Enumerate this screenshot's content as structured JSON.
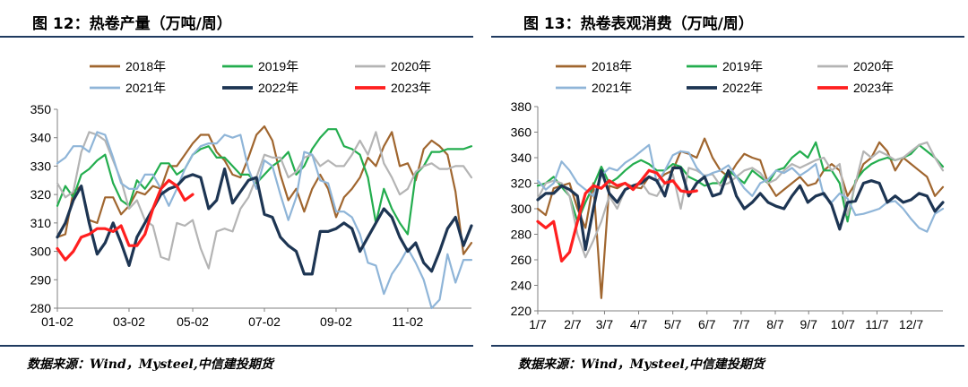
{
  "charts": [
    {
      "title": "图 12：热卷产量（万吨/周）",
      "source": "数据来源：Wind，Mysteel,中信建投期货"
    },
    {
      "title": "图 13：热卷表观消费（万吨/周）",
      "source": "数据来源：Wind，Mysteel,中信建投期货"
    }
  ],
  "chart_data": [
    {
      "type": "line",
      "title": "图 12：热卷产量（万吨/周）",
      "xlabel": "",
      "ylabel": "",
      "ylim": [
        280,
        350
      ],
      "yticks": [
        280,
        290,
        300,
        310,
        320,
        330,
        340,
        350
      ],
      "xlim": [
        1,
        53
      ],
      "x_tick_labels": [
        "01-02",
        "03-02",
        "05-02",
        "07-02",
        "09-02",
        "11-02"
      ],
      "x_tick_weeks": [
        1,
        10,
        18,
        27,
        36,
        45
      ],
      "grid": false,
      "legend_position": "top",
      "series": [
        {
          "name": "2018年",
          "color": "#a0662f",
          "width": 2.2,
          "values": [
            305,
            306,
            321,
            323,
            311,
            310,
            319,
            319,
            313,
            316,
            321,
            320,
            323,
            322,
            330,
            330,
            334,
            338,
            341,
            341,
            335,
            332,
            327,
            326,
            333,
            341,
            344,
            339,
            327,
            318,
            322,
            314,
            322,
            327,
            322,
            312,
            319,
            322,
            326,
            333,
            330,
            337,
            342,
            330,
            331,
            325,
            336,
            339,
            337,
            334,
            321,
            299,
            303
          ]
        },
        {
          "name": "2019年",
          "color": "#23ad4e",
          "width": 2.2,
          "values": [
            316,
            323,
            319,
            327,
            329,
            332,
            334,
            324,
            318,
            316,
            325,
            322,
            326,
            331,
            331,
            327,
            329,
            334,
            336,
            337,
            333,
            333,
            330,
            327,
            327,
            324,
            327,
            330,
            332,
            335,
            327,
            330,
            336,
            340,
            343,
            343,
            337,
            336,
            334,
            326,
            310,
            322,
            315,
            310,
            306,
            327,
            330,
            335,
            335,
            336,
            336,
            336,
            337
          ]
        },
        {
          "name": "2020年",
          "color": "#b4b4b4",
          "width": 2.2,
          "values": [
            324,
            319,
            321,
            335,
            342,
            341,
            339,
            332,
            325,
            315,
            318,
            311,
            309,
            298,
            297,
            310,
            309,
            311,
            301,
            294,
            307,
            308,
            307,
            315,
            319,
            326,
            334,
            333,
            333,
            326,
            328,
            333,
            334,
            330,
            332,
            330,
            330,
            334,
            339,
            334,
            342,
            331,
            326,
            320,
            322,
            328,
            330,
            331,
            329,
            329,
            330,
            330,
            326
          ]
        },
        {
          "name": "2021年",
          "color": "#8fb5d8",
          "width": 2.2,
          "values": [
            331,
            333,
            337,
            337,
            335,
            342,
            341,
            333,
            324,
            322,
            322,
            327,
            327,
            322,
            316,
            322,
            329,
            334,
            337,
            338,
            338,
            341,
            340,
            341,
            329,
            322,
            332,
            330,
            320,
            311,
            319,
            335,
            334,
            325,
            324,
            314,
            314,
            312,
            306,
            296,
            295,
            285,
            292,
            296,
            301,
            296,
            290,
            280,
            283,
            299,
            289,
            297,
            297
          ]
        },
        {
          "name": "2022年",
          "color": "#1d3553",
          "width": 3.2,
          "values": [
            305,
            310,
            318,
            323,
            310,
            299,
            303,
            310,
            303,
            295,
            305,
            310,
            315,
            320,
            322,
            323,
            326,
            327,
            326,
            315,
            318,
            329,
            317,
            321,
            325,
            326,
            313,
            312,
            305,
            302,
            300,
            292,
            292,
            307,
            307,
            308,
            310,
            308,
            300,
            305,
            310,
            315,
            312,
            305,
            300,
            303,
            296,
            293,
            300,
            308,
            312,
            302,
            309
          ]
        },
        {
          "name": "2023年",
          "color": "#ff1f1f",
          "width": 3.2,
          "values": [
            301,
            297,
            300,
            305,
            306,
            308,
            308,
            307,
            309,
            302,
            302,
            306,
            315,
            322,
            325,
            323,
            318,
            320
          ]
        }
      ]
    },
    {
      "type": "line",
      "title": "图 13：热卷表观消费（万吨/周）",
      "xlabel": "",
      "ylabel": "",
      "ylim": [
        220,
        380
      ],
      "yticks": [
        220,
        240,
        260,
        280,
        300,
        320,
        340,
        360,
        380
      ],
      "xlim": [
        1,
        52
      ],
      "x_tick_labels": [
        "1/7",
        "2/7",
        "3/7",
        "4/7",
        "5/7",
        "6/7",
        "7/7",
        "8/7",
        "9/7",
        "10/7",
        "11/7",
        "12/7"
      ],
      "x_tick_weeks": [
        1,
        5.4,
        9.4,
        13.7,
        18,
        22.3,
        26.6,
        30.9,
        35.1,
        39.4,
        43.7,
        48
      ],
      "grid": false,
      "legend_position": "top",
      "series": [
        {
          "name": "2018年",
          "color": "#a0662f",
          "width": 2.2,
          "values": [
            300,
            295,
            316,
            318,
            320,
            300,
            285,
            320,
            230,
            318,
            316,
            320,
            317,
            316,
            325,
            322,
            327,
            330,
            345,
            343,
            340,
            355,
            340,
            330,
            325,
            335,
            343,
            340,
            338,
            320,
            310,
            315,
            320,
            325,
            318,
            320,
            330,
            335,
            330,
            310,
            320,
            335,
            340,
            352,
            345,
            330,
            340,
            335,
            330,
            325,
            310,
            317
          ]
        },
        {
          "name": "2019年",
          "color": "#23ad4e",
          "width": 2.2,
          "values": [
            318,
            320,
            325,
            317,
            310,
            290,
            305,
            318,
            333,
            320,
            324,
            330,
            335,
            338,
            335,
            330,
            330,
            335,
            333,
            325,
            322,
            318,
            320,
            320,
            330,
            325,
            320,
            330,
            325,
            320,
            330,
            332,
            340,
            345,
            340,
            352,
            330,
            330,
            320,
            290,
            322,
            330,
            335,
            338,
            340,
            338,
            340,
            343,
            350,
            345,
            340,
            333
          ]
        },
        {
          "name": "2020年",
          "color": "#b4b4b4",
          "width": 2.2,
          "values": [
            308,
            320,
            322,
            320,
            310,
            280,
            262,
            275,
            290,
            310,
            300,
            315,
            318,
            321,
            312,
            310,
            320,
            327,
            300,
            332,
            330,
            326,
            327,
            318,
            320,
            325,
            330,
            332,
            328,
            320,
            323,
            330,
            335,
            332,
            335,
            338,
            340,
            330,
            335,
            295,
            320,
            345,
            340,
            345,
            342,
            338,
            340,
            345,
            350,
            352,
            340,
            330
          ]
        },
        {
          "name": "2021年",
          "color": "#8fb5d8",
          "width": 2.2,
          "values": [
            322,
            315,
            320,
            337,
            330,
            320,
            315,
            310,
            326,
            332,
            330,
            336,
            340,
            345,
            350,
            320,
            330,
            342,
            345,
            344,
            332,
            325,
            328,
            330,
            334,
            325,
            316,
            310,
            320,
            323,
            330,
            328,
            332,
            326,
            330,
            335,
            310,
            305,
            312,
            308,
            295,
            296,
            298,
            300,
            305,
            306,
            300,
            292,
            285,
            282,
            296,
            300
          ]
        },
        {
          "name": "2022年",
          "color": "#1d3553",
          "width": 3.2,
          "values": [
            307,
            312,
            312,
            318,
            315,
            310,
            268,
            300,
            330,
            312,
            305,
            315,
            318,
            320,
            325,
            322,
            310,
            332,
            332,
            310,
            320,
            325,
            310,
            312,
            330,
            310,
            300,
            305,
            312,
            305,
            302,
            300,
            310,
            318,
            305,
            310,
            312,
            303,
            284,
            305,
            306,
            320,
            322,
            320,
            305,
            310,
            305,
            307,
            312,
            310,
            298,
            305
          ]
        },
        {
          "name": "2023年",
          "color": "#ff1f1f",
          "width": 3.2,
          "values": [
            290,
            285,
            290,
            259,
            266,
            290,
            312,
            318,
            316,
            322,
            318,
            320,
            315,
            322,
            330,
            328,
            320,
            322,
            314,
            313,
            314
          ]
        }
      ]
    }
  ]
}
